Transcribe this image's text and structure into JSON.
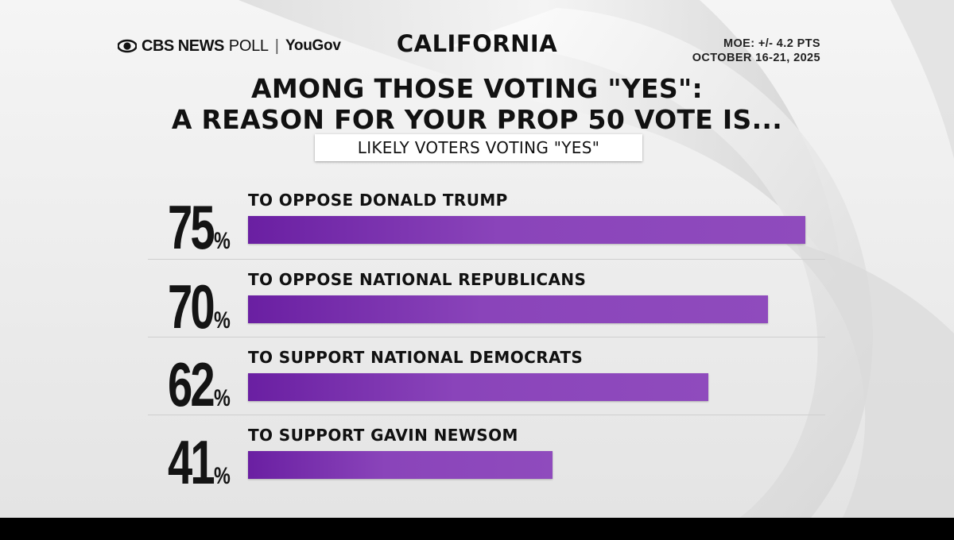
{
  "header": {
    "brand": "CBS NEWS",
    "poll": "POLL",
    "separator": "|",
    "partner": "YouGov",
    "state": "CALIFORNIA",
    "moe": "MOE: +/- 4.2 PTS",
    "dates": "OCTOBER 16-21, 2025"
  },
  "colors": {
    "bar": "#8a44ba",
    "bar_dark": "#6a1fa2",
    "text": "#111111"
  },
  "chart_data": {
    "type": "bar",
    "orientation": "horizontal",
    "title": "AMONG THOSE VOTING \"YES\": A REASON FOR YOUR PROP 50 VOTE IS...",
    "title_lines": [
      "AMONG THOSE VOTING \"YES\":",
      "A REASON FOR YOUR PROP 50 VOTE IS..."
    ],
    "subtitle": "LIKELY VOTERS VOTING \"YES\"",
    "unit": "%",
    "xlim": [
      0,
      75
    ],
    "categories": [
      "TO OPPOSE DONALD TRUMP",
      "TO OPPOSE NATIONAL REPUBLICANS",
      "TO SUPPORT NATIONAL DEMOCRATS",
      "TO SUPPORT GAVIN NEWSOM"
    ],
    "values": [
      75,
      70,
      62,
      41
    ],
    "value_labels": [
      "75",
      "70",
      "62",
      "41"
    ]
  }
}
